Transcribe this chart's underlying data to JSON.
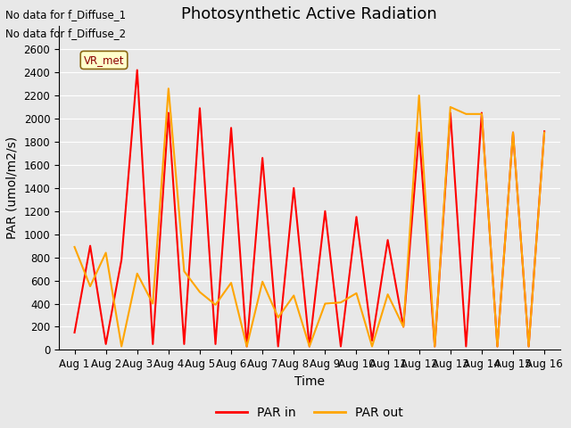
{
  "title": "Photosynthetic Active Radiation",
  "xlabel": "Time",
  "ylabel": "PAR (umol/m2/s)",
  "text_top_left": [
    "No data for f_Diffuse_1",
    "No data for f_Diffuse_2"
  ],
  "legend_label_box": "VR_met",
  "legend_entries": [
    "PAR in",
    "PAR out"
  ],
  "legend_colors": [
    "#ff0000",
    "#ffa500"
  ],
  "ylim": [
    0,
    2800
  ],
  "yticks": [
    0,
    200,
    400,
    600,
    800,
    1000,
    1200,
    1400,
    1600,
    1800,
    2000,
    2200,
    2400,
    2600
  ],
  "x_labels": [
    "Aug 1",
    "Aug 2",
    "Aug 3",
    "Aug 4",
    "Aug 5",
    "Aug 6",
    "Aug 7",
    "Aug 8",
    "Aug 9",
    "Aug 10",
    "Aug 11",
    "Aug 12",
    "Aug 13",
    "Aug 14",
    "Aug 15",
    "Aug 16"
  ],
  "par_in": [
    150,
    900,
    50,
    780,
    2420,
    50,
    2050,
    50,
    2090,
    50,
    1920,
    30,
    1660,
    30,
    1400,
    30,
    1200,
    30,
    1150,
    80,
    950,
    200,
    1880,
    30,
    2050,
    30,
    2050,
    30,
    1880,
    30,
    1890
  ],
  "par_out": [
    890,
    550,
    840,
    30,
    660,
    400,
    2260,
    680,
    500,
    390,
    580,
    30,
    590,
    280,
    470,
    30,
    400,
    410,
    490,
    30,
    480,
    200,
    2200,
    30,
    2100,
    2040,
    2040,
    30,
    1880,
    30,
    1880
  ],
  "x_values": [
    1,
    1.5,
    2,
    2.5,
    3,
    3.5,
    4,
    4.5,
    5,
    5.5,
    6,
    6.5,
    7,
    7.5,
    8,
    8.5,
    9,
    9.5,
    10,
    10.5,
    11,
    11.5,
    12,
    12.5,
    13,
    13.5,
    14,
    14.5,
    15,
    15.5,
    16
  ],
  "fig_facecolor": "#e8e8e8",
  "ax_facecolor": "#e8e8e8",
  "grid_color": "#ffffff",
  "title_fontsize": 13,
  "axis_fontsize": 10,
  "tick_fontsize": 8.5,
  "linewidth": 1.5,
  "xlim": [
    0.5,
    16.5
  ]
}
